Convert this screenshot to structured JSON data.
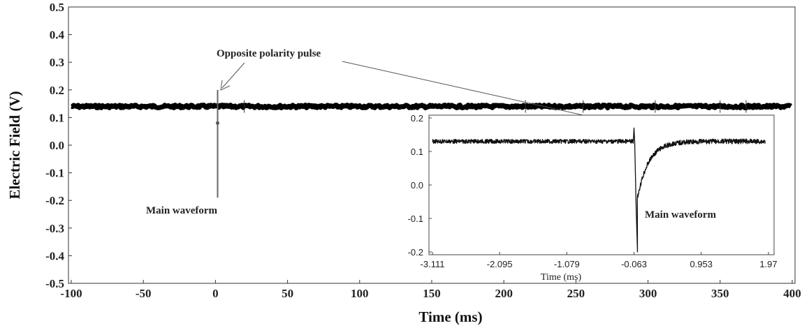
{
  "chart_data": [
    {
      "type": "line",
      "ylabel": "Electric Field (V)",
      "xlabel": "Time (ms)",
      "xlim": [
        -100,
        400
      ],
      "ylim": [
        -0.5,
        0.5
      ],
      "x_ticks": [
        -100,
        -50,
        0,
        50,
        100,
        150,
        200,
        250,
        300,
        350,
        400
      ],
      "y_ticks": [
        0.5,
        0.4,
        0.3,
        0.2,
        0.1,
        0.0,
        -0.1,
        -0.2,
        -0.3,
        -0.4,
        -0.5
      ],
      "y_tick_labels": [
        "0.5",
        "0.4",
        "0.3",
        "0.2",
        "0.1",
        "0.0",
        "-0.1",
        "-0.2",
        "-0.3",
        "-0.4",
        "-0.5"
      ],
      "grid": false,
      "series": [
        {
          "baseline": 0.14,
          "pulse_time": 1.5,
          "pulse_max": 0.2,
          "pulse_min": -0.19,
          "marker_point": [
            1.5,
            0.08
          ]
        }
      ],
      "annotations": [
        {
          "text": "Opposite polarity pulse"
        },
        {
          "text": "Main waveform"
        }
      ]
    },
    {
      "type": "line",
      "inset": true,
      "xlabel": "Time (ms)",
      "xlim": [
        -3.111,
        1.97
      ],
      "ylim": [
        -0.2,
        0.2
      ],
      "x_ticks": [
        -3.111,
        -2.095,
        -1.079,
        -0.063,
        0.953,
        1.97
      ],
      "x_tick_labels": [
        "-3.111",
        "-2.095",
        "-1.079",
        "-0.063",
        "0.953",
        "1.97"
      ],
      "y_ticks": [
        0.2,
        0.1,
        0.0,
        -0.1,
        -0.2
      ],
      "y_tick_labels": [
        "0.2",
        "0.1",
        "0.0",
        "-0.1",
        "-0.2"
      ],
      "series": [
        {
          "baseline": 0.13,
          "pulse_time": -0.063,
          "pulse_max": 0.17,
          "pulse_min": -0.2,
          "recovery_time": 0.4
        }
      ],
      "annotations": [
        {
          "text": "Main waveform"
        }
      ]
    }
  ]
}
